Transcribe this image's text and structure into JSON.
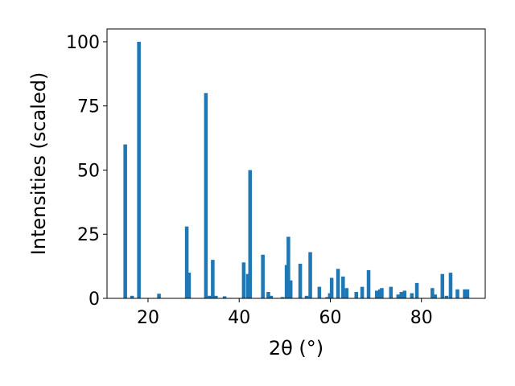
{
  "chart_data": {
    "type": "bar",
    "xlabel": "2θ (°)",
    "ylabel": "Intensities (scaled)",
    "xlim": [
      11,
      94
    ],
    "ylim": [
      0,
      105
    ],
    "xticks": [
      20,
      40,
      60,
      80
    ],
    "yticks": [
      0,
      25,
      50,
      75,
      100
    ],
    "grid": false,
    "bar_color": "#1f77b4",
    "bar_width": 0.8,
    "x": [
      15.0,
      16.5,
      18.0,
      22.4,
      28.5,
      29.0,
      32.7,
      33.5,
      34.2,
      34.9,
      36.8,
      41.0,
      41.9,
      42.4,
      45.2,
      46.4,
      47.0,
      49.5,
      50.4,
      50.8,
      51.3,
      53.4,
      54.8,
      55.6,
      57.6,
      59.3,
      59.9,
      60.3,
      61.7,
      62.8,
      63.6,
      65.7,
      67.0,
      68.4,
      70.2,
      70.9,
      71.3,
      73.3,
      74.9,
      75.6,
      76.3,
      77.9,
      79.0,
      82.4,
      83.0,
      84.6,
      85.5,
      86.4,
      87.9,
      89.5,
      90.1
    ],
    "values": [
      60,
      1,
      100,
      1.8,
      28,
      10,
      80,
      1,
      15,
      1,
      0.8,
      14,
      9.5,
      50,
      17,
      2.5,
      1,
      0.5,
      13,
      24,
      7,
      13.5,
      1,
      18,
      4.5,
      0.5,
      2,
      8,
      11.5,
      8.5,
      4,
      2.5,
      4.5,
      11,
      3,
      3.5,
      4,
      4.5,
      1.5,
      2.5,
      3,
      2,
      6,
      4,
      1.5,
      9.5,
      1,
      10,
      3.5,
      3.5,
      3.5
    ]
  }
}
